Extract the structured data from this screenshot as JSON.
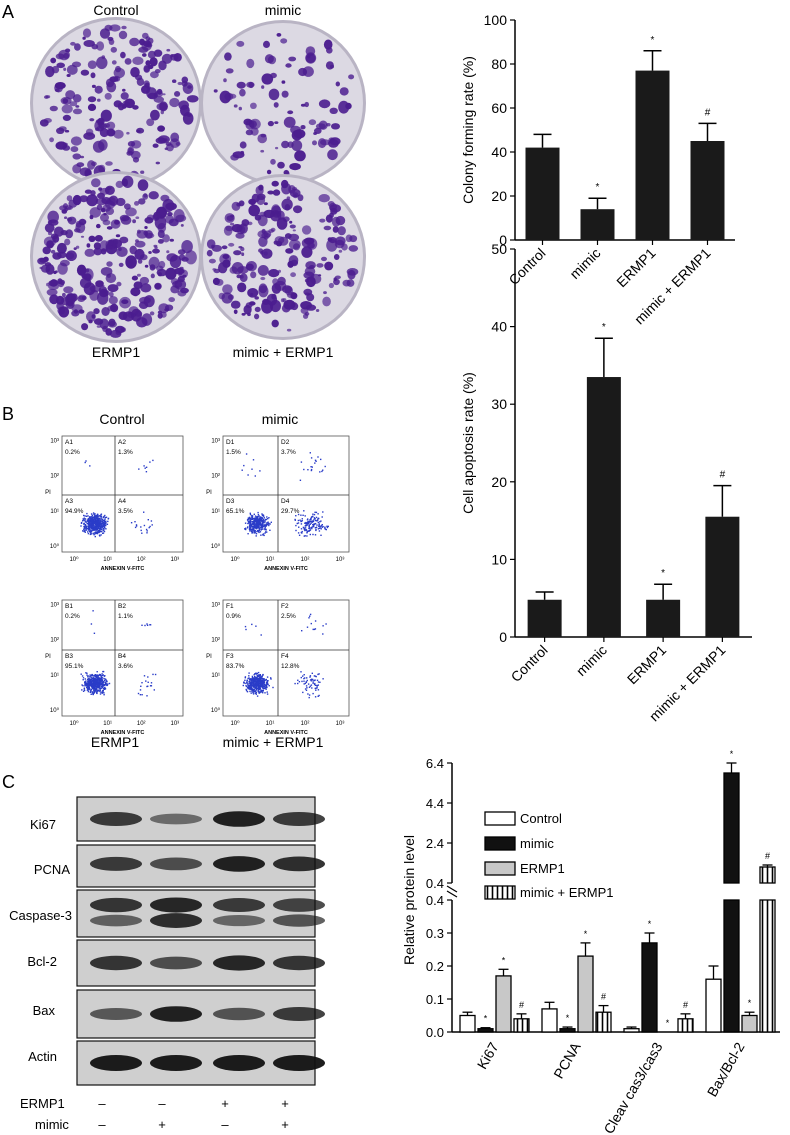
{
  "panels": {
    "A": {
      "letter": "A",
      "dish_labels": [
        "Control",
        "mimic",
        "ERMP1",
        "mimic + ERMP1"
      ],
      "chart_data": {
        "type": "bar",
        "categories": [
          "Control",
          "mimic",
          "ERMP1",
          "mimic + ERMP1"
        ],
        "values": [
          42,
          14,
          77,
          45
        ],
        "errors": [
          6,
          5,
          9,
          8
        ],
        "marks": [
          "",
          "*",
          "*",
          "#"
        ],
        "ylabel": "Colony forming rate (%)",
        "ylim": [
          0,
          100
        ],
        "yticks": [
          0,
          20,
          40,
          60,
          80,
          100
        ]
      },
      "colors": {
        "bar": "#1a1a1a",
        "plate_bg": "#dcd9e3",
        "colony": "#4b1d8f"
      }
    },
    "B": {
      "letter": "B",
      "flow_labels": [
        "Control",
        "mimic",
        "ERMP1",
        "mimic + ERMP1"
      ],
      "flow_plots": [
        {
          "q": [
            [
              "A1",
              "0.2%"
            ],
            [
              "A2",
              "1.3%"
            ],
            [
              "A3",
              "94.9%"
            ],
            [
              "A4",
              "3.5%"
            ]
          ]
        },
        {
          "q": [
            [
              "D1",
              "1.5%"
            ],
            [
              "D2",
              "3.7%"
            ],
            [
              "D3",
              "65.1%"
            ],
            [
              "D4",
              "29.7%"
            ]
          ]
        },
        {
          "q": [
            [
              "B1",
              "0.2%"
            ],
            [
              "B2",
              "1.1%"
            ],
            [
              "B3",
              "95.1%"
            ],
            [
              "B4",
              "3.6%"
            ]
          ]
        },
        {
          "q": [
            [
              "F1",
              "0.9%"
            ],
            [
              "F2",
              "2.5%"
            ],
            [
              "F3",
              "83.7%"
            ],
            [
              "F4",
              "12.8%"
            ]
          ]
        }
      ],
      "flow_axes": {
        "x": "ANNEXIN V-FITC",
        "y": "PI",
        "ticks": [
          "10⁰",
          "10¹",
          "10²",
          "10³"
        ]
      },
      "chart_data": {
        "type": "bar",
        "categories": [
          "Control",
          "mimic",
          "ERMP1",
          "mimic + ERMP1"
        ],
        "values": [
          4.8,
          33.5,
          4.8,
          15.5
        ],
        "errors": [
          1.0,
          5.0,
          2.0,
          4.0
        ],
        "marks": [
          "",
          "*",
          "*",
          "#"
        ],
        "ylabel": "Cell apoptosis rate (%)",
        "ylim": [
          0,
          50
        ],
        "yticks": [
          0,
          10,
          20,
          30,
          40,
          50
        ]
      },
      "colors": {
        "bar": "#1a1a1a",
        "dot": "#2a3cc8"
      }
    },
    "C": {
      "letter": "C",
      "blot_labels": [
        "Ki67",
        "PCNA",
        "Caspase-3",
        "Bcl-2",
        "Bax",
        "Actin"
      ],
      "condition_rows": [
        {
          "label": "ERMP1",
          "signs": [
            "–",
            "–",
            "+",
            "+"
          ]
        },
        {
          "label": "mimic",
          "signs": [
            "–",
            "+",
            "–",
            "+"
          ]
        }
      ],
      "chart_data": {
        "type": "bar",
        "categories": [
          "Ki67",
          "PCNA",
          "Cleav cas3/cas3",
          "Bax/Bcl-2"
        ],
        "ylabel": "Relative protein level",
        "axis_break": true,
        "lower_range": [
          0,
          0.4
        ],
        "upper_range": [
          0.4,
          6.4
        ],
        "lower_ticks": [
          "0.0",
          "0.1",
          "0.2",
          "0.3",
          "0.4"
        ],
        "upper_ticks": [
          "0.4",
          "2.4",
          "4.4",
          "6.4"
        ],
        "series": [
          {
            "name": "Control",
            "values": [
              0.05,
              0.07,
              0.01,
              0.16
            ],
            "errors": [
              0.01,
              0.02,
              0.005,
              0.04
            ],
            "marks": [
              "",
              "",
              "",
              ""
            ]
          },
          {
            "name": "mimic",
            "values": [
              0.01,
              0.01,
              0.27,
              5.9
            ],
            "errors": [
              0.003,
              0.005,
              0.03,
              0.5
            ],
            "marks": [
              "*",
              "*",
              "*",
              "*"
            ]
          },
          {
            "name": "ERMP1",
            "values": [
              0.17,
              0.23,
              0.0,
              0.05
            ],
            "errors": [
              0.02,
              0.04,
              0.0,
              0.01
            ],
            "marks": [
              "*",
              "*",
              "*",
              "*"
            ]
          },
          {
            "name": "mimic + ERMP1",
            "values": [
              0.04,
              0.06,
              0.04,
              1.2
            ],
            "errors": [
              0.015,
              0.02,
              0.015,
              0.1
            ],
            "marks": [
              "#",
              "#",
              "#",
              "#"
            ]
          }
        ],
        "legend_position": "top"
      }
    }
  }
}
